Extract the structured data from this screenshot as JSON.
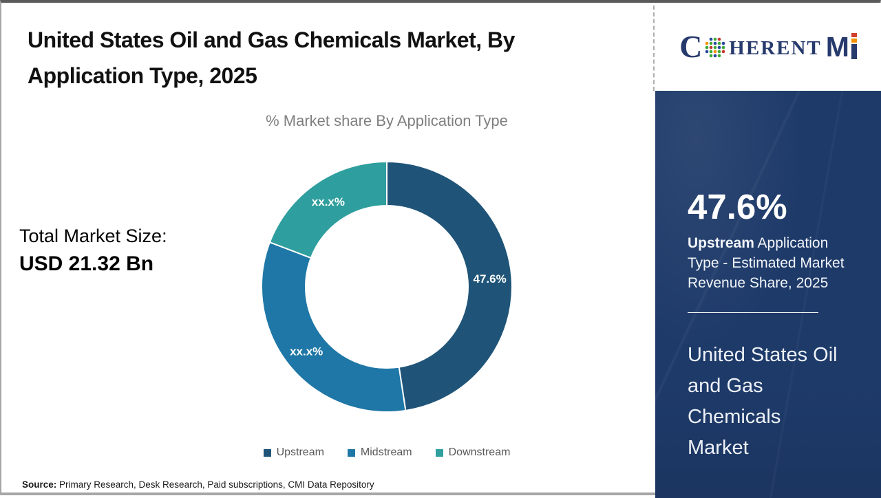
{
  "page": {
    "title": "United States Oil and Gas Chemicals Market, By Application Type, 2025",
    "source_label": "Source:",
    "source_text": " Primary Research, Desk Research, Paid subscriptions, CMI Data Repository"
  },
  "logo": {
    "c": "C",
    "herent": "HERENT",
    "m": "M"
  },
  "stats": {
    "total_label": "Total Market Size:",
    "total_value": "USD 21.32 Bn"
  },
  "chart_data": {
    "type": "pie",
    "donut": true,
    "title": "% Market share By Application Type",
    "start_angle_deg": 0,
    "inner_radius_ratio": 0.65,
    "legend_position": "bottom",
    "segments": [
      {
        "name": "Upstream",
        "label": "47.6%",
        "value": 47.6,
        "color": "#1f5478"
      },
      {
        "name": "Midstream",
        "label": "xx.x%",
        "value": 33.2,
        "color": "#1e77a6"
      },
      {
        "name": "Downstream",
        "label": "xx.x%",
        "value": 19.2,
        "color": "#2f9e9e"
      }
    ]
  },
  "sidebar": {
    "headline_value": "47.6%",
    "headline_bold": "Upstream",
    "headline_rest": " Application Type - Estimated Market Revenue Share, 2025",
    "market_name": "United States Oil and Gas Chemicals Market",
    "bg_color": "#1e3a69"
  }
}
